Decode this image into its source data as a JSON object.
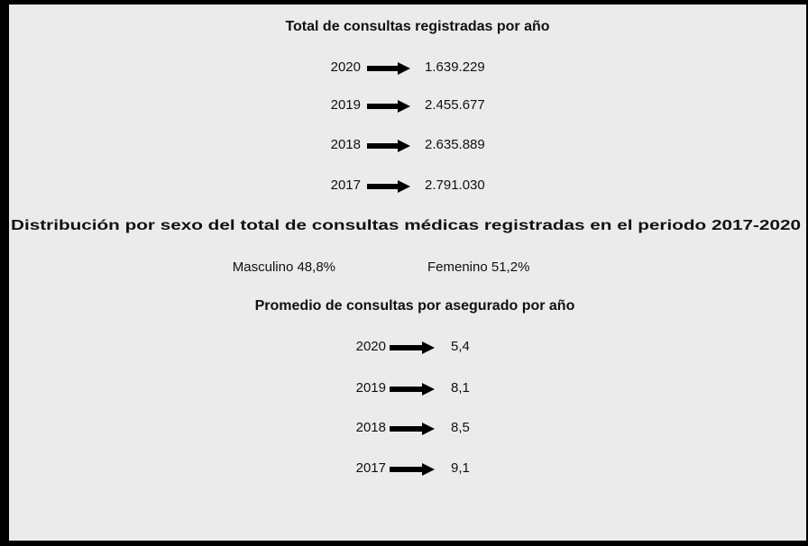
{
  "consultas": {
    "title": "Total de consultas registradas por año",
    "rows": [
      {
        "year": "2020",
        "value": "1.639.229"
      },
      {
        "year": "2019",
        "value": "2.455.677"
      },
      {
        "year": "2018",
        "value": "2.635.889"
      },
      {
        "year": "2017",
        "value": "2.791.030"
      }
    ]
  },
  "sexo": {
    "title": "Distribución por sexo del total de consultas médicas registradas en el periodo 2017-2020",
    "items": [
      "Masculino 48,8%",
      "Femenino 51,2%"
    ]
  },
  "promedio": {
    "title": "Promedio de consultas por asegurado por año",
    "rows": [
      {
        "year": "2020",
        "value": "5,4"
      },
      {
        "year": "2019",
        "value": "8,1"
      },
      {
        "year": "2018",
        "value": "8,5"
      },
      {
        "year": "2017",
        "value": "9,1"
      }
    ]
  }
}
